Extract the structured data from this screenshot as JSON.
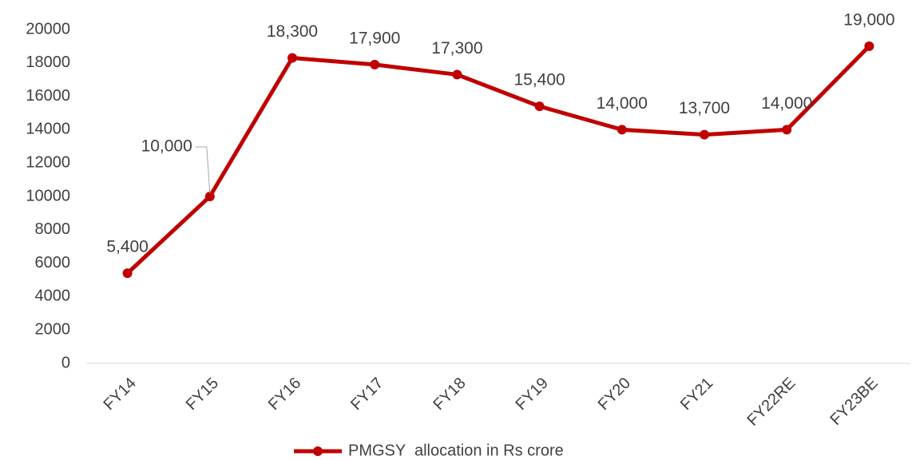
{
  "chart_data": {
    "type": "line",
    "categories": [
      "FY14",
      "FY15",
      "FY16",
      "FY17",
      "FY18",
      "FY19",
      "FY20",
      "FY21",
      "FY22RE",
      "FY23BE"
    ],
    "series": [
      {
        "name": "PMGSY  allocation in Rs crore",
        "color": "#c00000",
        "values": [
          5400,
          10000,
          18300,
          17900,
          17300,
          15400,
          14000,
          13700,
          14000,
          19000
        ],
        "value_labels": [
          "5,400",
          "10,000",
          "18,300",
          "17,900",
          "17,300",
          "15,400",
          "14,000",
          "13,700",
          "14,000",
          "19,000"
        ]
      }
    ],
    "ylim": [
      0,
      20000
    ],
    "yticks": [
      0,
      2000,
      4000,
      6000,
      8000,
      10000,
      12000,
      14000,
      16000,
      18000,
      20000
    ],
    "grid": false,
    "legend": "bottom"
  }
}
